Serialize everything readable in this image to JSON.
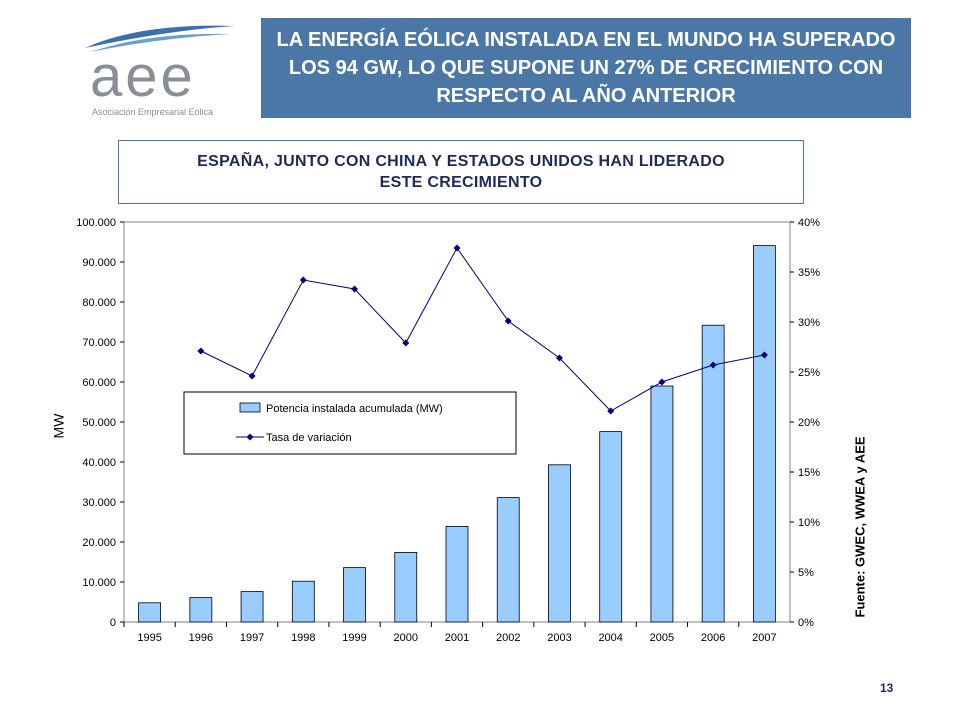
{
  "logo": {
    "name": "aee",
    "subtitle": "Asociación Empresarial Eólica"
  },
  "headline": "LA ENERGÍA EÓLICA INSTALADA EN EL MUNDO HA SUPERADO LOS 94 GW, LO QUE SUPONE UN 27% DE CRECIMIENTO CON RESPECTO AL AÑO ANTERIOR",
  "subheadline": "ESPAÑA, JUNTO CON CHINA Y ESTADOS UNIDOS HAN LIDERADO ESTE CRECIMIENTO",
  "source": "Fuente: GWEC, WWEA y AEE",
  "page_number": "13",
  "colors": {
    "header_bg": "#4a77a6",
    "bar_fill": "#99ccff",
    "line": "#000080",
    "text_dark": "#1e2a5a"
  },
  "chart_data": {
    "type": "bar",
    "categories": [
      "1995",
      "1996",
      "1997",
      "1998",
      "1999",
      "2000",
      "2001",
      "2002",
      "2003",
      "2004",
      "2005",
      "2006",
      "2007"
    ],
    "series": [
      {
        "name": "Potencia instalada acumulada (MW)",
        "type": "bar",
        "axis": "left",
        "values": [
          4800,
          6100,
          7600,
          10200,
          13600,
          17400,
          23900,
          31100,
          39300,
          47600,
          59000,
          74200,
          94100
        ]
      },
      {
        "name": "Tasa de variación",
        "type": "line",
        "axis": "right",
        "values": [
          null,
          27.1,
          24.6,
          34.2,
          33.3,
          27.9,
          37.4,
          30.1,
          26.4,
          21.1,
          24.0,
          25.7,
          26.7
        ]
      }
    ],
    "ylabel": "MW",
    "ylim": [
      0,
      100000
    ],
    "y_ticks": [
      "0",
      "10.000",
      "20.000",
      "30.000",
      "40.000",
      "50.000",
      "60.000",
      "70.000",
      "80.000",
      "90.000",
      "100.000"
    ],
    "y2lim": [
      0,
      40
    ],
    "y2_ticks": [
      "0%",
      "5%",
      "10%",
      "15%",
      "20%",
      "25%",
      "30%",
      "35%",
      "40%"
    ],
    "legend": "center-left"
  }
}
